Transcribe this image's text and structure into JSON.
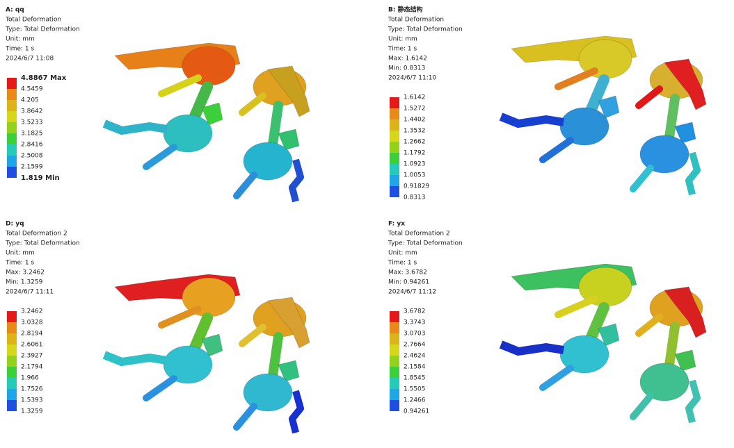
{
  "panels": [
    {
      "lines": [
        "A: qq",
        "Total Deformation",
        "Type: Total Deformation",
        "Unit: mm",
        "Time: 1 s",
        "2024/6/7 11:08"
      ],
      "legend": [
        "4.8867 Max",
        "4.5459",
        "4.205",
        "3.8642",
        "3.5233",
        "3.1825",
        "2.8416",
        "2.5008",
        "2.1599",
        "1.819 Min"
      ]
    },
    {
      "lines": [
        "B: 静态结构",
        "Total Deformation",
        "Type: Total Deformation",
        "Unit: mm",
        "Time: 1 s",
        "Max: 1.6142",
        "Min: 0.8313",
        "2024/6/7 11:10"
      ],
      "legend": [
        "1.6142",
        "1.5272",
        "1.4402",
        "1.3532",
        "1.2662",
        "1.1792",
        "1.0923",
        "1.0053",
        "0.91829",
        "0.8313"
      ]
    },
    {
      "lines": [
        "D: yq",
        "Total Deformation 2",
        "Type: Total Deformation",
        "Unit: mm",
        "Time: 1 s",
        "Max: 3.2462",
        "Min: 1.3259",
        "2024/6/7 11:11"
      ],
      "legend": [
        "3.2462",
        "3.0328",
        "2.8194",
        "2.6061",
        "2.3927",
        "2.1794",
        "1.966",
        "1.7526",
        "1.5393",
        "1.3259"
      ]
    },
    {
      "lines": [
        "F: yx",
        "Total Deformation 2",
        "Type: Total Deformation",
        "Unit: mm",
        "Time: 1 s",
        "Max: 3.6782",
        "Min: 0.94261",
        "2024/6/7 11:12"
      ],
      "legend": [
        "3.6782",
        "3.3743",
        "3.0703",
        "2.7664",
        "2.4624",
        "2.1584",
        "1.8545",
        "1.5505",
        "1.2466",
        "0.94261"
      ]
    }
  ]
}
